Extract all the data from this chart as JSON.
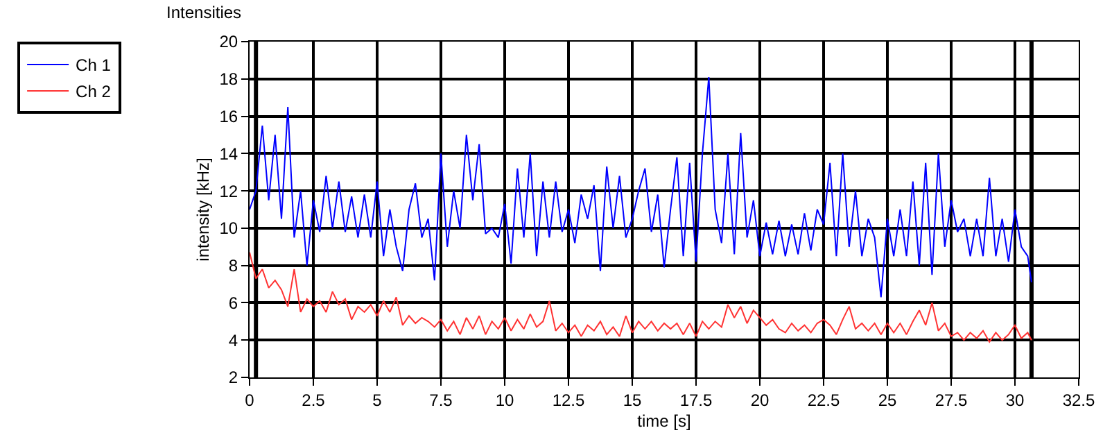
{
  "chart_data": {
    "type": "line",
    "title": "Intensities",
    "xlabel": "time [s]",
    "ylabel": "intensity [kHz]",
    "x": [
      0,
      0.25,
      0.5,
      0.75,
      1,
      1.25,
      1.5,
      1.75,
      2,
      2.25,
      2.5,
      2.75,
      3,
      3.25,
      3.5,
      3.75,
      4,
      4.25,
      4.5,
      4.75,
      5,
      5.25,
      5.5,
      5.75,
      6,
      6.25,
      6.5,
      6.75,
      7,
      7.25,
      7.5,
      7.75,
      8,
      8.25,
      8.5,
      8.75,
      9,
      9.25,
      9.5,
      9.75,
      10,
      10.25,
      10.5,
      10.75,
      11,
      11.25,
      11.5,
      11.75,
      12,
      12.25,
      12.5,
      12.75,
      13,
      13.25,
      13.5,
      13.75,
      14,
      14.25,
      14.5,
      14.75,
      15,
      15.25,
      15.5,
      15.75,
      16,
      16.25,
      16.5,
      16.75,
      17,
      17.25,
      17.5,
      17.75,
      18,
      18.25,
      18.5,
      18.75,
      19,
      19.25,
      19.5,
      19.75,
      20,
      20.25,
      20.5,
      20.75,
      21,
      21.25,
      21.5,
      21.75,
      22,
      22.25,
      22.5,
      22.75,
      23,
      23.25,
      23.5,
      23.75,
      24,
      24.25,
      24.5,
      24.75,
      25,
      25.25,
      25.5,
      25.75,
      26,
      26.25,
      26.5,
      26.75,
      27,
      27.25,
      27.5,
      27.75,
      28,
      28.25,
      28.5,
      28.75,
      29,
      29.25,
      29.5,
      29.75,
      30,
      30.25,
      30.5,
      30.65
    ],
    "series": [
      {
        "name": "Ch 1",
        "color": "#0000ff",
        "values": [
          11,
          12,
          15.5,
          11.5,
          15,
          10.5,
          16.5,
          9.5,
          12,
          8,
          11.5,
          9.8,
          12.8,
          10,
          12.5,
          9.8,
          11.7,
          9.5,
          11.8,
          9.5,
          12.5,
          8.5,
          11,
          9,
          7.7,
          11,
          12.4,
          9.5,
          10.5,
          7.2,
          14,
          9,
          12,
          10,
          15,
          11.5,
          14.5,
          9.7,
          10,
          9.5,
          11.3,
          8.1,
          13.2,
          9.5,
          14,
          8.5,
          12.5,
          9.5,
          12.5,
          9.8,
          11,
          9.2,
          11.8,
          10.5,
          12.3,
          7.7,
          13.3,
          10,
          12.8,
          9.5,
          10.5,
          12,
          13.2,
          9.8,
          11.8,
          7.9,
          11,
          13.8,
          8.5,
          13.5,
          8.2,
          14,
          18.1,
          11,
          9.2,
          14,
          8.6,
          15.1,
          9.5,
          11.5,
          8.5,
          10.3,
          8.6,
          10.4,
          8.5,
          10.2,
          8.6,
          10.8,
          8.8,
          11,
          10.2,
          13.5,
          8.5,
          14,
          9,
          12,
          8.5,
          10.5,
          9.5,
          6.3,
          10.5,
          8.5,
          11,
          8.5,
          12.5,
          8,
          13.5,
          7.5,
          14,
          9,
          11.5,
          9.8,
          10.5,
          8.5,
          10.5,
          8.5,
          12.7,
          8.5,
          10.5,
          8.2,
          11,
          9,
          8.5,
          7.1
        ]
      },
      {
        "name": "Ch 2",
        "color": "#ff3333",
        "values": [
          8.7,
          7.3,
          7.8,
          6.8,
          7.2,
          6.7,
          5.8,
          7.8,
          5.5,
          6.2,
          5.8,
          6.1,
          5.5,
          6.6,
          5.9,
          6.2,
          5.1,
          5.8,
          5.5,
          5.9,
          5.3,
          6.1,
          5.5,
          6.3,
          4.8,
          5.3,
          4.9,
          5.2,
          5,
          4.7,
          5.1,
          4.5,
          5,
          4.3,
          5.2,
          4.6,
          5.3,
          4.3,
          5,
          4.6,
          5.2,
          4.5,
          5.1,
          4.6,
          5.4,
          4.7,
          5,
          6.1,
          4.5,
          4.9,
          4.4,
          4.8,
          4.2,
          4.8,
          4.5,
          5,
          4.3,
          4.7,
          4.2,
          5.3,
          4.4,
          5,
          4.6,
          5,
          4.5,
          4.9,
          4.6,
          4.9,
          4.3,
          4.9,
          4.2,
          5,
          4.6,
          5,
          4.7,
          5.9,
          5.2,
          5.8,
          4.9,
          5.6,
          5.2,
          4.8,
          5.1,
          4.6,
          4.4,
          4.9,
          4.5,
          4.8,
          4.4,
          4.9,
          5.1,
          4.8,
          4.3,
          5.1,
          5.8,
          4.6,
          4.9,
          4.5,
          4.9,
          4.3,
          4.9,
          4.4,
          4.9,
          4.3,
          5,
          5.6,
          4.8,
          6,
          4.5,
          4.9,
          4.2,
          4.4,
          4,
          4.4,
          4.1,
          4.5,
          3.9,
          4.4,
          4,
          4.3,
          4.8,
          4.1,
          4.4,
          4
        ]
      }
    ],
    "xlim": [
      0,
      32.5
    ],
    "xticks": [
      0,
      {
        "value": 2.5,
        "label": "2.5"
      },
      5,
      {
        "value": 7.5,
        "label": "7.5"
      },
      10,
      {
        "value": 12.5,
        "label": "12.5"
      },
      15,
      {
        "value": 17.5,
        "label": "17.5"
      },
      20,
      {
        "value": 22.5,
        "label": "22.5"
      },
      25,
      {
        "value": 27.5,
        "label": "27.5"
      },
      30,
      {
        "value": 32.5,
        "label": "32.5"
      }
    ],
    "ylim": [
      2,
      20
    ],
    "yticks": [
      2,
      4,
      6,
      8,
      10,
      12,
      14,
      16,
      18,
      20
    ],
    "ref_lines": [
      {
        "axis": "x",
        "value": 0.25,
        "color": "#000000"
      },
      {
        "axis": "x",
        "value": 30.65,
        "color": "#000000"
      }
    ],
    "grid": true,
    "legend": "top left",
    "marker": "none",
    "line_style": "solid"
  }
}
